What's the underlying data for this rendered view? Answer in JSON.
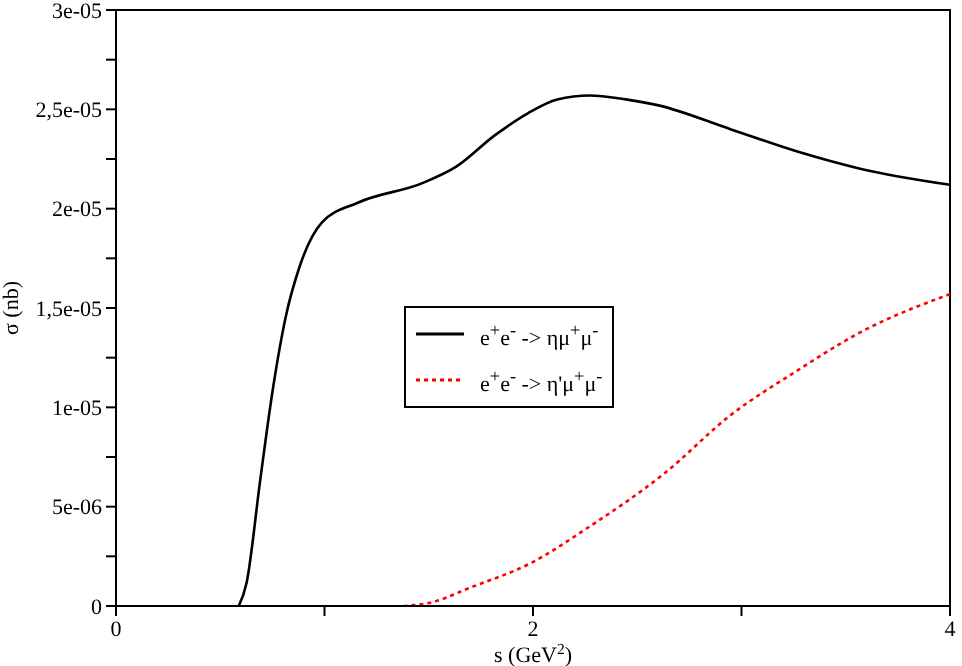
{
  "chart_data": {
    "type": "line",
    "xlabel": "s (GeV$^{2}$)",
    "ylabel": "σ (nb)",
    "xlim": [
      0,
      4
    ],
    "xticks": [
      0,
      {
        "value": 1,
        "label": null
      },
      2,
      {
        "value": 3,
        "label": null
      },
      4
    ],
    "ylim": [
      0,
      3e-05
    ],
    "yticks": [
      0,
      {
        "value": 2.5e-06,
        "label": null
      },
      {
        "value": 5e-06,
        "label": "5e-06"
      },
      {
        "value": 7.5e-06,
        "label": null
      },
      {
        "value": 1e-05,
        "label": "1e-05"
      },
      {
        "value": 1.25e-05,
        "label": null
      },
      {
        "value": 1.5e-05,
        "label": "1,5e-05"
      },
      {
        "value": 1.75e-05,
        "label": null
      },
      {
        "value": 2e-05,
        "label": "2e-05"
      },
      {
        "value": 2.25e-05,
        "label": null
      },
      {
        "value": 2.5e-05,
        "label": "2,5e-05"
      },
      {
        "value": 2.75e-05,
        "label": null
      },
      {
        "value": 3e-05,
        "label": "3e-05"
      }
    ],
    "grid": false,
    "legend": "center",
    "marker": "none",
    "series": [
      {
        "name": "e$^{+}$e$^{-}$ -> ημ$^{+}$μ$^{-}$",
        "color": "#000000",
        "line_style": "solid",
        "x": [
          0.589,
          0.627,
          0.69,
          0.752,
          0.815,
          0.878,
          0.987,
          1.16,
          1.473,
          1.63,
          1.818,
          1.975,
          2.116,
          2.273,
          2.445,
          2.602,
          2.947,
          3.26,
          3.574,
          4.0
        ],
        "values": [
          0,
          1.2e-06,
          6.2e-06,
          1.09e-05,
          1.46e-05,
          1.7e-05,
          1.93e-05,
          2.03e-05,
          2.13e-05,
          2.21e-05,
          2.37e-05,
          2.48e-05,
          2.55e-05,
          2.57e-05,
          2.55e-05,
          2.52e-05,
          2.4e-05,
          2.29e-05,
          2.2e-05,
          2.12e-05
        ]
      },
      {
        "name": "e$^{+}$e$^{-}$ -> η'μ$^{+}$μ$^{-}$",
        "color": "#ff0000",
        "line_style": "dotted",
        "x": [
          1.379,
          1.52,
          1.693,
          1.997,
          2.257,
          2.633,
          2.947,
          3.26,
          3.574,
          4.0
        ],
        "values": [
          0,
          2e-07,
          9e-07,
          2.2e-06,
          3.9e-06,
          6.7e-06,
          9.6e-06,
          1.18e-05,
          1.38e-05,
          1.57e-05
        ]
      }
    ]
  }
}
